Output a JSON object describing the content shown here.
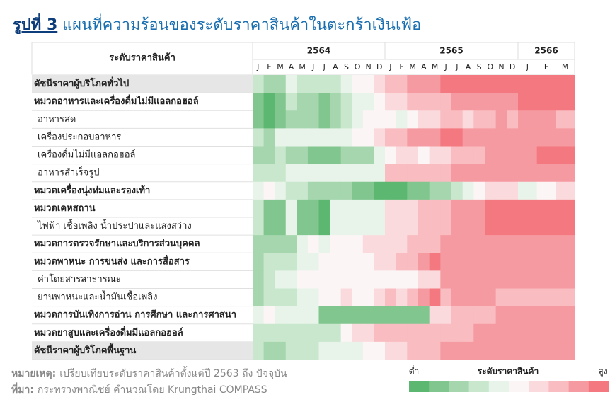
{
  "chart_data": {
    "type": "heatmap",
    "title_prefix": "รูปที่ 3",
    "title": "แผนที่ความร้อนของระดับราคาสินค้าในตะกร้าเงินเฟ้อ",
    "row_header": "ระดับราคาสินค้า",
    "x_groups": [
      {
        "label": "2564",
        "months": [
          "J",
          "F",
          "M",
          "A",
          "M",
          "J",
          "J",
          "A",
          "S",
          "O",
          "N",
          "D"
        ]
      },
      {
        "label": "2565",
        "months": [
          "J",
          "F",
          "M",
          "A",
          "M",
          "J",
          "J",
          "A",
          "S",
          "O",
          "N",
          "D"
        ]
      },
      {
        "label": "2566",
        "months": [
          "J",
          "F",
          "M"
        ]
      }
    ],
    "color_scale": [
      "#5cb870",
      "#80c68e",
      "#a5d6ad",
      "#c8e7cd",
      "#e8f4ea",
      "#fbf5f6",
      "#fadadd",
      "#f8bcc1",
      "#f69aa1",
      "#f47880"
    ],
    "rows": [
      {
        "name": "ดัชนีราคาผู้บริโภคทั่วไป",
        "bold": true,
        "shaded": true,
        "values": [
          4,
          3,
          3,
          5,
          4,
          4,
          4,
          4,
          5,
          6,
          6,
          7,
          8,
          8,
          9,
          9,
          9,
          10,
          10,
          10,
          10,
          10,
          10,
          10,
          10,
          10,
          10
        ]
      },
      {
        "name": "หมวดอาหารและเครื่องดื่มไม่มีแอลกอฮอล์",
        "bold": true,
        "values": [
          2,
          1,
          2,
          4,
          3,
          3,
          2,
          3,
          4,
          5,
          5,
          6,
          7,
          7,
          8,
          8,
          8,
          8,
          9,
          9,
          9,
          9,
          9,
          9,
          10,
          10,
          10
        ]
      },
      {
        "name": "อาหารสด",
        "values": [
          2,
          1,
          2,
          3,
          3,
          3,
          2,
          3,
          4,
          5,
          6,
          6,
          6,
          5,
          6,
          7,
          7,
          8,
          8,
          7,
          8,
          8,
          9,
          8,
          9,
          9,
          8
        ]
      },
      {
        "name": "เครื่องประกอบอาหาร",
        "values": [
          4,
          3,
          5,
          5,
          5,
          5,
          5,
          5,
          5,
          6,
          6,
          7,
          8,
          8,
          9,
          9,
          9,
          10,
          10,
          9,
          9,
          9,
          9,
          9,
          9,
          9,
          9
        ]
      },
      {
        "name": "เครื่องดื่มไม่มีแอลกอฮอล์",
        "values": [
          3,
          3,
          4,
          3,
          3,
          2,
          2,
          2,
          3,
          3,
          3,
          5,
          6,
          7,
          7,
          6,
          7,
          7,
          8,
          8,
          8,
          9,
          9,
          9,
          9,
          10,
          10
        ]
      },
      {
        "name": "อาหารสำเร็จรูป",
        "values": [
          4,
          4,
          4,
          5,
          5,
          5,
          5,
          5,
          5,
          5,
          5,
          5,
          8,
          8,
          8,
          8,
          8,
          8,
          9,
          9,
          9,
          9,
          9,
          9,
          9,
          9,
          9
        ]
      },
      {
        "name": "หมวดเครื่องนุ่งห่มและรองเท้า",
        "bold": true,
        "values": [
          5,
          6,
          5,
          4,
          4,
          3,
          3,
          3,
          3,
          2,
          2,
          1,
          1,
          1,
          2,
          2,
          3,
          3,
          4,
          5,
          6,
          7,
          7,
          7,
          5,
          6,
          7
        ]
      },
      {
        "name": "หมวดเคหสถาน",
        "bold": true,
        "values": [
          4,
          2,
          2,
          5,
          2,
          2,
          1,
          5,
          5,
          5,
          5,
          5,
          7,
          7,
          7,
          8,
          8,
          8,
          9,
          9,
          9,
          10,
          10,
          10,
          10,
          10,
          10
        ]
      },
      {
        "name": "ไฟฟ้า เชื้อเพลิง น้ำประปาและแสงสว่าง",
        "values": [
          4,
          2,
          2,
          5,
          2,
          2,
          1,
          5,
          5,
          5,
          5,
          5,
          7,
          7,
          7,
          8,
          8,
          8,
          9,
          9,
          9,
          10,
          10,
          10,
          10,
          10,
          10
        ]
      },
      {
        "name": "หมวดการตรวจรักษาและบริการส่วนบุคคล",
        "bold": true,
        "values": [
          3,
          3,
          3,
          3,
          5,
          6,
          5,
          6,
          6,
          6,
          7,
          7,
          7,
          7,
          8,
          8,
          8,
          9,
          9,
          9,
          9,
          9,
          9,
          9,
          9,
          9,
          9
        ]
      },
      {
        "name": "หมวดพาหนะ การขนส่ง และการสื่อสาร",
        "bold": true,
        "values": [
          3,
          4,
          4,
          4,
          5,
          5,
          6,
          6,
          6,
          6,
          6,
          7,
          7,
          8,
          8,
          9,
          10,
          9,
          9,
          9,
          9,
          9,
          9,
          9,
          9,
          9,
          9
        ]
      },
      {
        "name": "ค่าโดยสารสาธารณะ",
        "values": [
          3,
          4,
          5,
          5,
          6,
          6,
          6,
          6,
          6,
          6,
          6,
          6,
          6,
          6,
          6,
          7,
          7,
          9,
          9,
          9,
          9,
          9,
          9,
          9,
          9,
          9,
          9
        ]
      },
      {
        "name": "ยานพาหนะและน้ำมันเชื้อเพลิง",
        "values": [
          3,
          4,
          4,
          4,
          5,
          5,
          6,
          6,
          7,
          6,
          6,
          7,
          8,
          7,
          8,
          9,
          10,
          8,
          9,
          9,
          9,
          9,
          8,
          8,
          8,
          8,
          8
        ]
      },
      {
        "name": "หมวดการบันเทิงการอ่าน การศึกษา และการศาสนา",
        "bold": true,
        "values": [
          5,
          6,
          5,
          5,
          5,
          5,
          2,
          2,
          2,
          2,
          2,
          2,
          2,
          2,
          2,
          2,
          7,
          7,
          8,
          8,
          8,
          8,
          9,
          9,
          9,
          9,
          9
        ]
      },
      {
        "name": "หมวดยาสูบและเครื่องดื่มมีแอลกอฮอล์",
        "bold": true,
        "values": [
          4,
          4,
          4,
          4,
          4,
          4,
          4,
          4,
          6,
          7,
          7,
          8,
          8,
          8,
          8,
          8,
          8,
          8,
          8,
          8,
          9,
          9,
          9,
          9,
          9,
          9,
          9
        ]
      },
      {
        "name": "ดัชนีราคาผู้บริโภคพื้นฐาน",
        "bold": true,
        "shaded": true,
        "values": [
          4,
          3,
          3,
          4,
          4,
          4,
          5,
          5,
          5,
          5,
          6,
          6,
          7,
          7,
          8,
          8,
          8,
          9,
          9,
          9,
          9,
          9,
          9,
          9,
          9,
          9,
          9
        ]
      }
    ],
    "legend_low": "ต่ำ",
    "legend_title": "ระดับราคาสินค้า",
    "legend_high": "สูง",
    "note_label": "หมายเหตุ:",
    "note": "เปรียบเทียบระดับราคาสินค้าตั้งแต่ปี 2563 ถึง ปัจจุบัน",
    "source_label": "ที่มา:",
    "source": "กระทรวงพาณิชย์ คำนวณโดย Krungthai COMPASS"
  }
}
